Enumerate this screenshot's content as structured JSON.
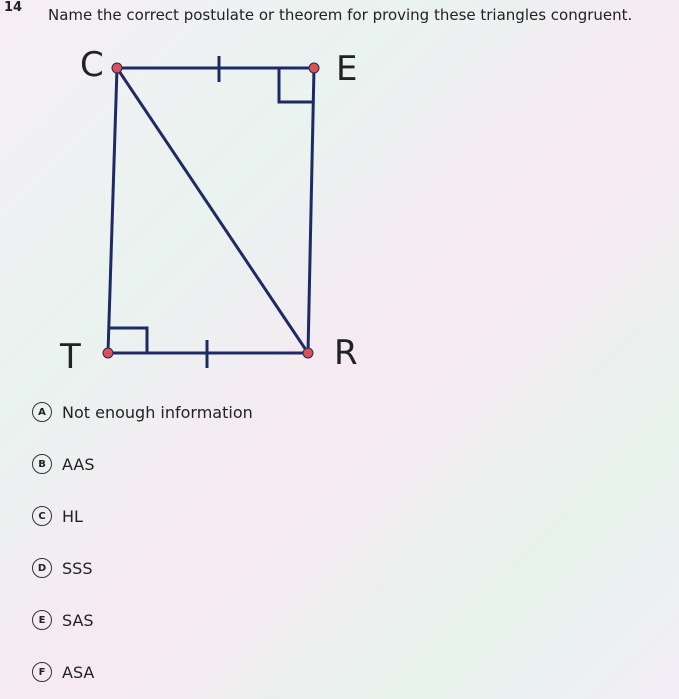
{
  "question": {
    "number": "14",
    "text": "Name the correct postulate or theorem for proving these triangles congruent."
  },
  "diagram": {
    "labels": [
      "C",
      "E",
      "T",
      "R"
    ]
  },
  "options": [
    {
      "letter": "A",
      "text": "Not enough information"
    },
    {
      "letter": "B",
      "text": "AAS"
    },
    {
      "letter": "C",
      "text": "HL"
    },
    {
      "letter": "D",
      "text": "SSS"
    },
    {
      "letter": "E",
      "text": "SAS"
    },
    {
      "letter": "F",
      "text": "ASA"
    }
  ]
}
